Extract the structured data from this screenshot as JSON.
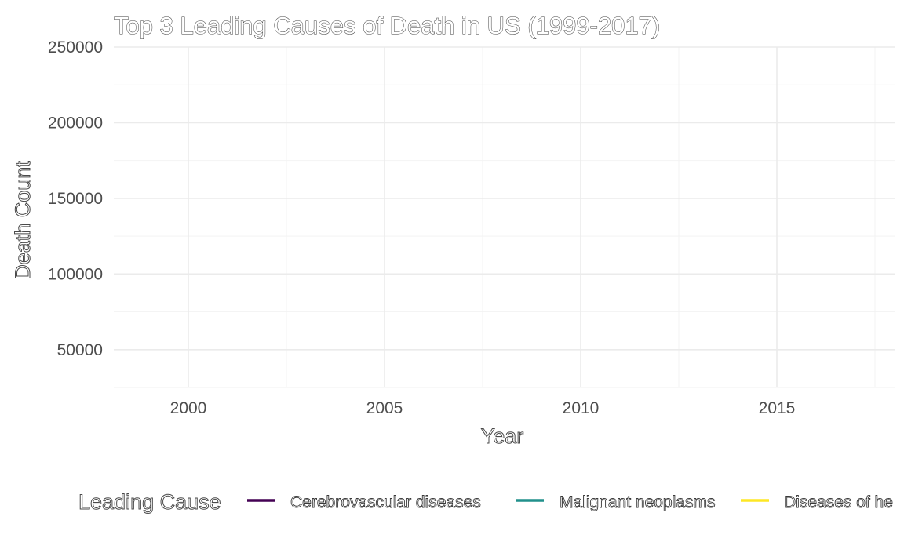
{
  "chart_data": {
    "type": "line",
    "title": "Top 3 Leading Causes of Death in US (1999-2017)",
    "xlabel": "Year",
    "ylabel": "Death Count",
    "x_ticks": [
      2000,
      2005,
      2010,
      2015
    ],
    "y_ticks": [
      50000,
      100000,
      150000,
      200000,
      250000
    ],
    "xlim": [
      1998.1,
      2018.0
    ],
    "ylim": [
      25000,
      250000
    ],
    "grid": true,
    "legend": {
      "title": "Leading Cause",
      "position": "bottom",
      "entries": [
        {
          "label": "Cerebrovascular diseases",
          "color": "#440154"
        },
        {
          "label": "Malignant neoplasms",
          "color": "#21908C"
        },
        {
          "label": "Diseases of he",
          "color": "#FDE725"
        }
      ]
    },
    "series": []
  }
}
